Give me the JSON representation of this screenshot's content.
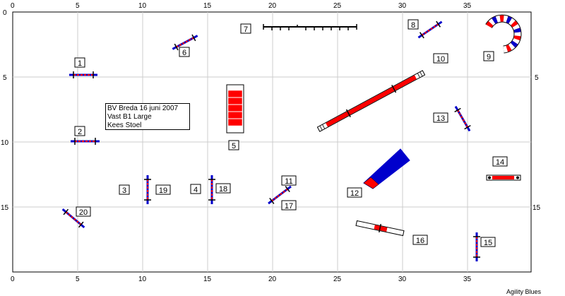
{
  "axes": {
    "x_ticks": [
      "0",
      "5",
      "10",
      "15",
      "20",
      "25",
      "30",
      "35"
    ],
    "y_ticks": [
      "0",
      "5",
      "10",
      "15"
    ]
  },
  "info": {
    "line1": "BV Breda 16 juni 2007",
    "line2": "Vast B1 Large",
    "line3": "Kees Stoel"
  },
  "footer": "Agility Blues",
  "obstacle_labels": {
    "n1": "1",
    "n2": "2",
    "n3": "3",
    "n4": "4",
    "n5": "5",
    "n6": "6",
    "n7": "7",
    "n8": "8",
    "n9": "9",
    "n10": "10",
    "n11": "11",
    "n12": "12",
    "n13": "13",
    "n14": "14",
    "n15": "15",
    "n16": "16",
    "n17": "17",
    "n18": "18",
    "n19": "19",
    "n20": "20"
  },
  "colors": {
    "red": "#ff0000",
    "blue": "#0000cc",
    "grid": "#cccccc"
  }
}
